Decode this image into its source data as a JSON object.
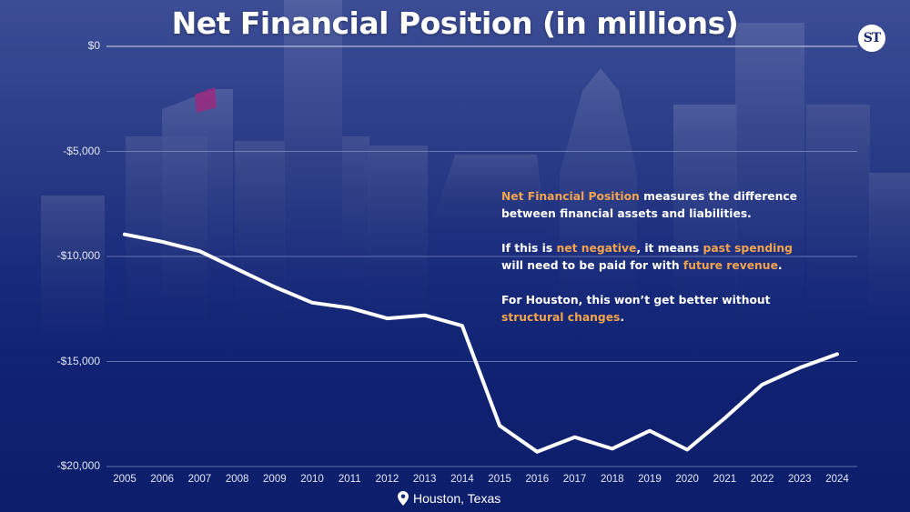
{
  "title": "Net Financial Position (in millions)",
  "logo_text": "ST",
  "location_text": "Houston, Texas",
  "colors": {
    "highlight": "#f4a44c",
    "line": "#ffffff",
    "text": "#ffffff",
    "background": "#1a2c7c"
  },
  "annotation": {
    "p1": {
      "hl": "Net Financial Position",
      "rest": " measures the difference between financial assets and liabilities."
    },
    "p2": {
      "a": "If this is ",
      "hl1": "net negative",
      "b": ", it means ",
      "hl2": "past spending",
      "c": " will need to be paid for with ",
      "hl3": "future revenue",
      "d": "."
    },
    "p3": {
      "a": "For Houston, this won’t get better without ",
      "hl": "structural changes",
      "b": "."
    }
  },
  "chart_data": {
    "type": "line",
    "title": "Net Financial Position (in millions)",
    "xlabel": "",
    "ylabel": "",
    "x": [
      "2005",
      "2006",
      "2007",
      "2008",
      "2009",
      "2010",
      "2011",
      "2012",
      "2013",
      "2014",
      "2015",
      "2016",
      "2017",
      "2018",
      "2019",
      "2020",
      "2021",
      "2022",
      "2023",
      "2024"
    ],
    "series": [
      {
        "values": [
          -8950,
          -9300,
          -9750,
          -10600,
          -11450,
          -12200,
          -12450,
          -12950,
          -12800,
          -13300,
          -18050,
          -19300,
          -18600,
          -19150,
          -18300,
          -19200,
          -17700,
          -16100,
          -15300,
          -14650
        ]
      }
    ],
    "y_ticks": [
      0,
      -5000,
      -10000,
      -15000,
      -20000
    ],
    "y_tick_labels": [
      "$0",
      "-$5,000",
      "-$10,000",
      "-$15,000",
      "-$20,000"
    ],
    "ylim": [
      -20000,
      0
    ],
    "grid": true,
    "legend": "none"
  }
}
